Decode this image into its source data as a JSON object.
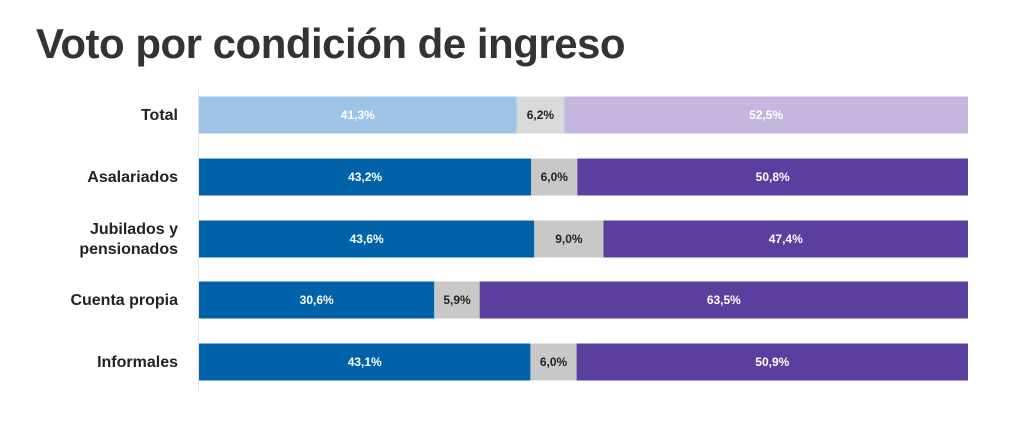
{
  "chart_data": {
    "type": "bar",
    "orientation": "horizontal",
    "stacked": true,
    "percent_stacked": true,
    "title": "Voto por condición de ingreso",
    "categories": [
      "Total",
      "Asalariados",
      "Jubilados y pensionados",
      "Cuenta propia",
      "Informales"
    ],
    "category_lines": [
      [
        "Total"
      ],
      [
        "Asalariados"
      ],
      [
        "Jubilados y",
        "pensionados"
      ],
      [
        "Cuenta propia"
      ],
      [
        "Informales"
      ]
    ],
    "series": [
      {
        "values": [
          41.3,
          43.2,
          43.6,
          30.6,
          43.1
        ],
        "labels": [
          "41,3%",
          "43,2%",
          "43,6%",
          "30,6%",
          "43,1%"
        ]
      },
      {
        "values": [
          6.2,
          6.0,
          9.0,
          5.9,
          6.0
        ],
        "labels": [
          "6,2%",
          "6,0%",
          "9,0%",
          "5,9%",
          "6,0%"
        ]
      },
      {
        "values": [
          52.5,
          50.8,
          47.4,
          63.5,
          50.9
        ],
        "labels": [
          "52,5%",
          "50,8%",
          "47,4%",
          "63,5%",
          "50,9%"
        ]
      }
    ],
    "colors": {
      "total_row": [
        "#9DC3E6",
        "#D9D9D9",
        "#C5B6E0"
      ],
      "other_rows": [
        "#0062A8",
        "#C8C8C8",
        "#5A3F9E"
      ],
      "label_on_dark": "#ffffff",
      "label_on_grey": "#222222",
      "label_on_light": "#ffffff"
    },
    "xlim": [
      0,
      100
    ],
    "grid": false,
    "legend": "none"
  }
}
